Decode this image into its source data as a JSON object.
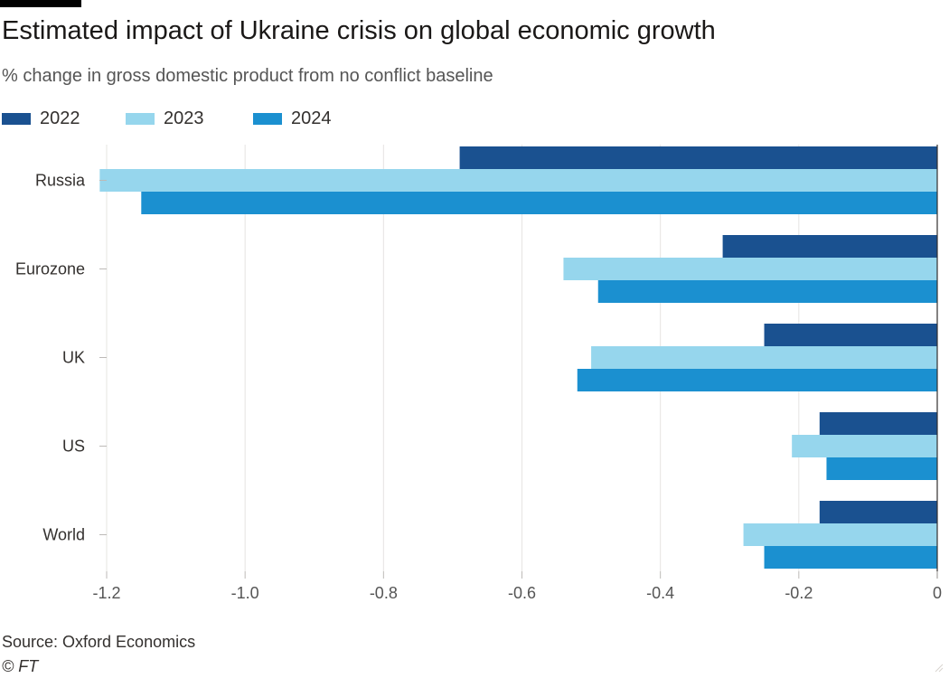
{
  "header": {
    "title": "Estimated impact of Ukraine crisis on global economic growth",
    "subtitle": "% change in gross domestic product from no conflict baseline"
  },
  "footer": {
    "source": "Source: Oxford Economics",
    "credit": "© FT"
  },
  "chart_data": {
    "type": "bar",
    "orientation": "horizontal",
    "title": "Estimated impact of Ukraine crisis on global economic growth",
    "subtitle": "% change in gross domestic product from no conflict baseline",
    "categories": [
      "Russia",
      "Eurozone",
      "UK",
      "US",
      "World"
    ],
    "series": [
      {
        "name": "2022",
        "color": "#1a5190",
        "values": [
          -0.69,
          -0.31,
          -0.25,
          -0.17,
          -0.17
        ]
      },
      {
        "name": "2023",
        "color": "#96d6ed",
        "values": [
          -1.21,
          -0.54,
          -0.5,
          -0.21,
          -0.28
        ]
      },
      {
        "name": "2024",
        "color": "#1b90d0",
        "values": [
          -1.15,
          -0.49,
          -0.52,
          -0.16,
          -0.25
        ]
      }
    ],
    "xlim": [
      -1.2,
      0
    ],
    "xticks": [
      {
        "value": -1.2,
        "label": "-1.2"
      },
      {
        "value": -1.0,
        "label": "-1.0"
      },
      {
        "value": -0.8,
        "label": "-0.8"
      },
      {
        "value": -0.6,
        "label": "-0.6"
      },
      {
        "value": -0.4,
        "label": "-0.4"
      },
      {
        "value": -0.2,
        "label": "-0.2"
      },
      {
        "value": 0,
        "label": "0"
      }
    ],
    "grid": true,
    "legend_position": "top-left"
  }
}
